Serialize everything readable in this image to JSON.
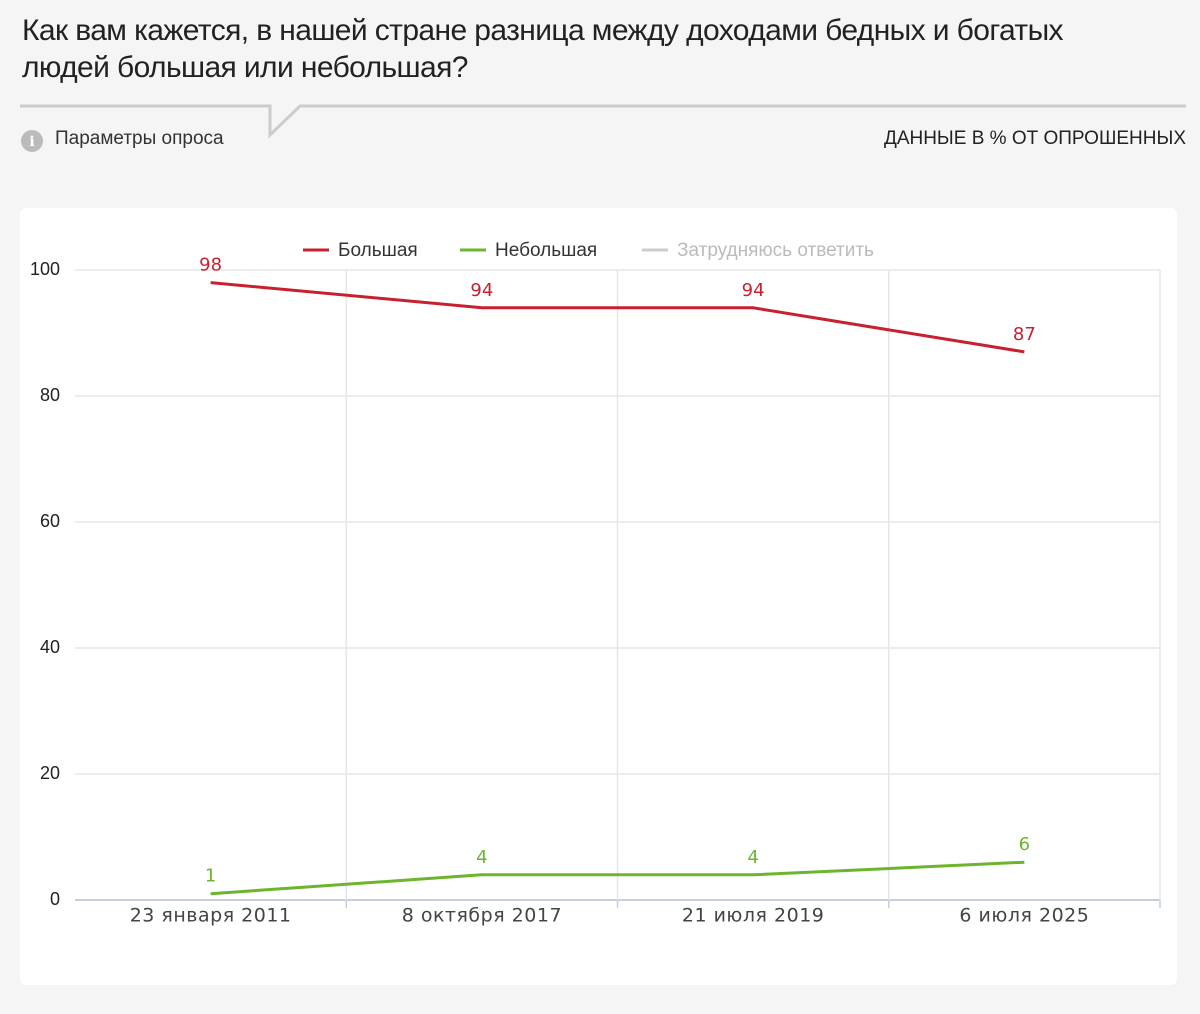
{
  "chart_data": {
    "type": "line",
    "title": "Как вам кажется, в нашей стране разница между доходами бедных и богатых людей большая или небольшая?",
    "params_label": "Параметры опроса",
    "units_note": "ДАННЫЕ В % ОТ ОПРОШЕННЫХ",
    "categories": [
      "23 января 2011",
      "8 октября 2017",
      "21 июля 2019",
      "6 июля 2025"
    ],
    "series": [
      {
        "name": "Большая",
        "color": "#c8202f",
        "values": [
          98,
          94,
          94,
          87
        ]
      },
      {
        "name": "Небольшая",
        "color": "#6cb52d",
        "values": [
          1,
          4,
          4,
          6
        ]
      },
      {
        "name": "Затрудняюсь ответить",
        "color": "#cccccc",
        "values": [
          null,
          null,
          null,
          null
        ],
        "hidden": true
      }
    ],
    "ylim": [
      0,
      100
    ],
    "yticks": [
      0,
      20,
      40,
      60,
      80,
      100
    ],
    "grid": true,
    "legend": "top"
  }
}
